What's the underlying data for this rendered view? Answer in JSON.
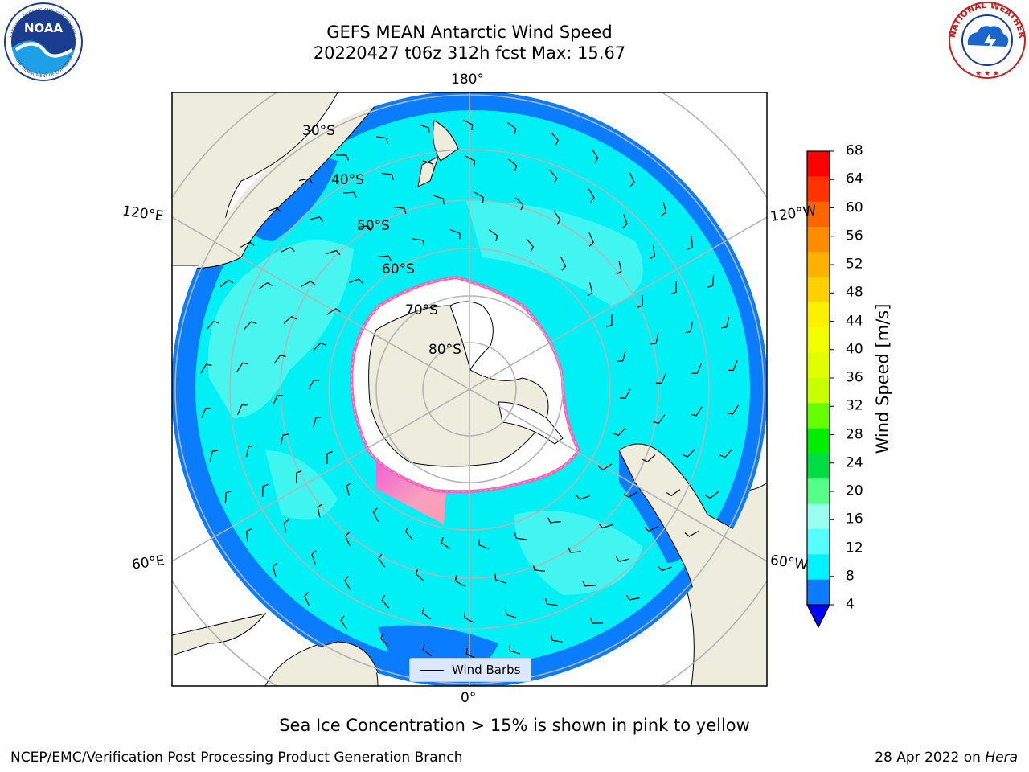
{
  "header": {
    "title_line1": "GEFS MEAN Antarctic Wind Speed",
    "title_line2": "20220427 t06z 312h fcst   Max: 15.67"
  },
  "logos": {
    "left": {
      "name": "NOAA",
      "ring_text": "NATIONAL OCEANIC AND ATMOSPHERIC ADMINISTRATION",
      "bottom_text": "U.S. DEPARTMENT OF COMMERCE",
      "center_text": "NOAA"
    },
    "right": {
      "name": "National Weather Service",
      "ring_text": "NATIONAL WEATHER SERVICE"
    }
  },
  "map": {
    "projection": "south-polar-stereographic",
    "longitude_labels": {
      "top": "180°",
      "bottom": "0°",
      "upper_left": "120°E",
      "upper_right": "120°W",
      "lower_left": "60°E",
      "lower_right": "60°W"
    },
    "latitude_labels": [
      "30°S",
      "40°S",
      "50°S",
      "60°S",
      "70°S",
      "80°S"
    ],
    "colors": {
      "ocean_dark": "#0a7cff",
      "ocean_mid": "#00f0f5",
      "ocean_light": "#5af7ee",
      "land": "#eeecdc",
      "ice": "#ffffff",
      "sea_ice_pink": "#f25fd2",
      "sea_ice_orange": "#ffb44a",
      "grid": "#b4b4b4"
    },
    "legend": {
      "label": "Wind Barbs"
    }
  },
  "colorbar": {
    "label": "Wind Speed [m/s]",
    "ticks": [
      "68",
      "64",
      "60",
      "56",
      "52",
      "48",
      "44",
      "40",
      "36",
      "32",
      "28",
      "24",
      "20",
      "16",
      "12",
      "8",
      "4"
    ],
    "colors": [
      "#ff0000",
      "#ff3300",
      "#ff6600",
      "#ff8c00",
      "#ffb000",
      "#ffd000",
      "#ffef00",
      "#f2ff00",
      "#e0ff00",
      "#c8ff00",
      "#66ff00",
      "#00ee00",
      "#00dd44",
      "#55ff88",
      "#99fff0",
      "#55ffff",
      "#00f2ff",
      "#0a7cff"
    ],
    "extend_color": "#0000ff"
  },
  "caption": "Sea Ice Concentration > 15% is shown in pink to yellow",
  "footer": {
    "left": "NCEP/EMC/Verification Post Processing Product Generation Branch",
    "date": "28 Apr 2022 on ",
    "machine": "Hera"
  }
}
